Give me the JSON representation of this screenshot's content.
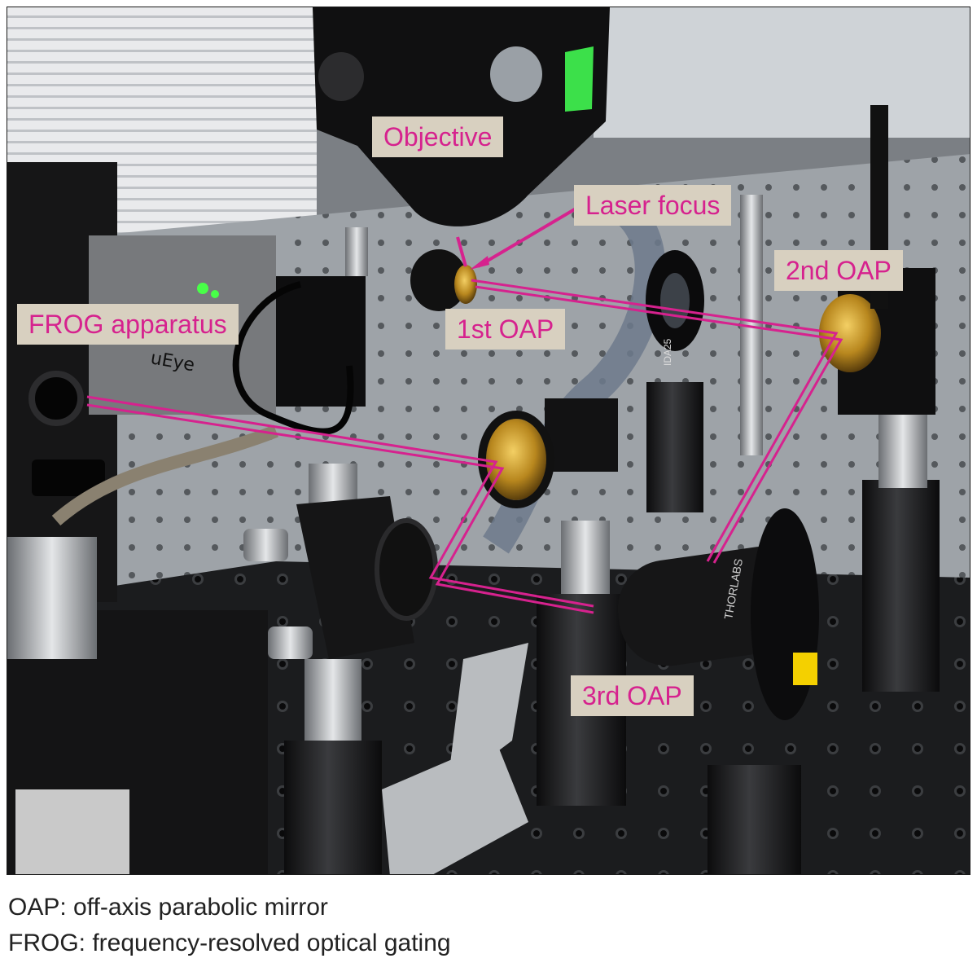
{
  "figure": {
    "labels": {
      "objective": "Objective",
      "laser_focus": "Laser focus",
      "oap_1": "1st OAP",
      "oap_2": "2nd OAP",
      "oap_3": "3rd OAP",
      "frog": "FROG apparatus"
    },
    "caption": {
      "line1": "OAP: off-axis parabolic mirror",
      "line2": "FROG: frequency-resolved optical gating"
    },
    "device_text": {
      "camera_brand": "uEye",
      "lens_brand": "THORLABS",
      "iris_marking": "IDA25"
    },
    "colors": {
      "label_text": "#d6228e",
      "label_background": "#d8d0c0",
      "beam": "#d6228e"
    }
  }
}
